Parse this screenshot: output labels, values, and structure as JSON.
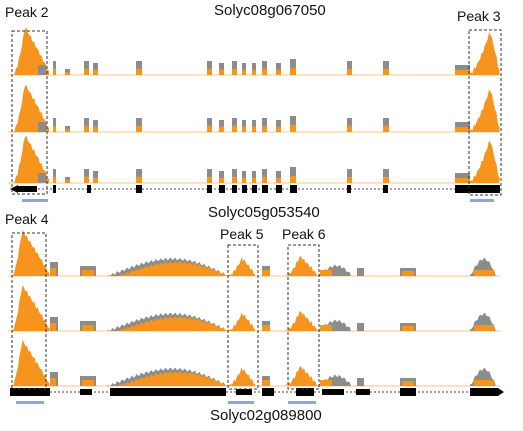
{
  "panel_top": {
    "gene_top": "Solyc08g067050",
    "peaks": [
      {
        "label": "Peak 2"
      },
      {
        "label": "Peak 3"
      }
    ],
    "tracks": 3
  },
  "panel_bottom": {
    "gene_top": "Solyc05g053540",
    "gene_bottom": "Solyc02g089800",
    "peaks": [
      {
        "label": "Peak 4"
      },
      {
        "label": "Peak 5"
      },
      {
        "label": "Peak 6"
      }
    ],
    "tracks": 3
  },
  "colors": {
    "orange": "#f7941d",
    "gray": "#8c8c8c",
    "baseline": "#f6c48a",
    "exon": "#000000",
    "peak_bar": "#8fa7d8",
    "dash_box": "#333333"
  }
}
